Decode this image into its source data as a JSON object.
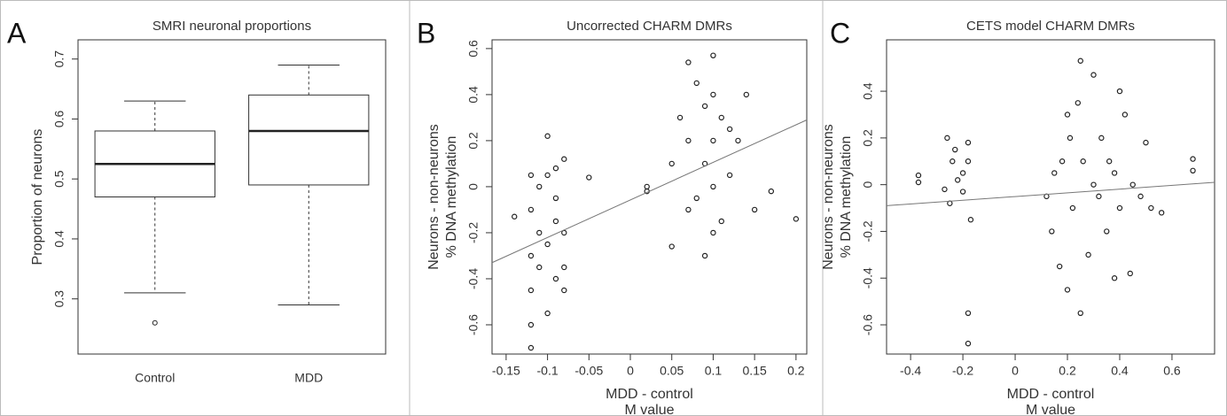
{
  "chart_data": [
    {
      "type": "box",
      "panel_label": "A",
      "title": "SMRI neuronal proportions",
      "ylabel": [
        "Proportion of neurons"
      ],
      "categories": [
        "Control",
        "MDD"
      ],
      "boxes": [
        {
          "min": 0.31,
          "q1": 0.47,
          "median": 0.525,
          "q3": 0.58,
          "max": 0.63,
          "outliers": [
            0.26
          ]
        },
        {
          "min": 0.29,
          "q1": 0.49,
          "median": 0.58,
          "q3": 0.64,
          "max": 0.69
        }
      ],
      "ylim": [
        0.208,
        0.732
      ],
      "yticks": [
        0.3,
        0.4,
        0.5,
        0.6,
        0.7
      ],
      "color": "#222222"
    },
    {
      "type": "scatter",
      "panel_label": "B",
      "title": "Uncorrected CHARM DMRs",
      "ylabel": [
        "Neurons - non-neurons",
        "% DNA methylation"
      ],
      "xlabel": [
        "MDD - control",
        "M value"
      ],
      "x": [
        -0.14,
        -0.12,
        -0.12,
        -0.12,
        -0.12,
        -0.12,
        -0.12,
        -0.11,
        -0.11,
        -0.11,
        -0.1,
        -0.1,
        -0.1,
        -0.1,
        -0.09,
        -0.09,
        -0.09,
        -0.09,
        -0.08,
        -0.08,
        -0.08,
        -0.08,
        -0.05,
        0.02,
        0.02,
        0.05,
        0.05,
        0.06,
        0.07,
        0.07,
        0.07,
        0.08,
        0.08,
        0.09,
        0.09,
        0.09,
        0.1,
        0.1,
        0.1,
        0.1,
        0.1,
        0.11,
        0.11,
        0.12,
        0.12,
        0.13,
        0.14,
        0.15,
        0.17,
        0.2
      ],
      "values": [
        -0.13,
        -0.7,
        -0.6,
        -0.45,
        -0.3,
        -0.1,
        0.05,
        -0.35,
        -0.2,
        0,
        0.22,
        0.05,
        -0.55,
        -0.25,
        0.08,
        -0.15,
        -0.4,
        -0.05,
        -0.2,
        -0.45,
        0.12,
        -0.35,
        0.04,
        -0.02,
        0,
        -0.26,
        0.1,
        0.3,
        0.54,
        0.2,
        -0.1,
        0.45,
        -0.05,
        0.35,
        0.1,
        -0.3,
        0.57,
        0.4,
        0.2,
        0,
        -0.2,
        0.3,
        -0.15,
        0.25,
        0.05,
        0.2,
        0.4,
        -0.1,
        -0.02,
        -0.14
      ],
      "fit_line": {
        "x": [
          -0.167,
          0.213
        ],
        "y": [
          -0.33,
          0.29
        ]
      },
      "xlim": [
        -0.167,
        0.213
      ],
      "xticks": [
        -0.15,
        -0.1,
        -0.05,
        0,
        0.05,
        0.1,
        0.15,
        0.2
      ],
      "ylim": [
        -0.727,
        0.638
      ],
      "yticks": [
        -0.6,
        -0.4,
        -0.2,
        0,
        0.2,
        0.4,
        0.6
      ],
      "color": "#222222"
    },
    {
      "type": "scatter",
      "panel_label": "C",
      "title": "CETS model CHARM DMRs",
      "ylabel": [
        "Neurons - non-neurons",
        "% DNA methylation"
      ],
      "xlabel": [
        "MDD - control",
        "M value"
      ],
      "x": [
        -0.37,
        -0.37,
        -0.27,
        -0.26,
        -0.25,
        -0.24,
        -0.23,
        -0.22,
        -0.2,
        -0.2,
        -0.18,
        -0.18,
        -0.18,
        -0.18,
        -0.17,
        0.12,
        0.14,
        0.15,
        0.17,
        0.18,
        0.2,
        0.2,
        0.21,
        0.22,
        0.24,
        0.25,
        0.25,
        0.26,
        0.28,
        0.3,
        0.3,
        0.32,
        0.33,
        0.35,
        0.36,
        0.38,
        0.38,
        0.4,
        0.4,
        0.42,
        0.44,
        0.45,
        0.48,
        0.5,
        0.52,
        0.56,
        0.68,
        0.68
      ],
      "values": [
        0.04,
        0.01,
        -0.02,
        0.2,
        -0.08,
        0.1,
        0.15,
        0.02,
        0.05,
        -0.03,
        0.18,
        0.1,
        -0.55,
        -0.68,
        -0.15,
        -0.05,
        -0.2,
        0.05,
        -0.35,
        0.1,
        -0.45,
        0.3,
        0.2,
        -0.1,
        0.35,
        0.53,
        -0.55,
        0.1,
        -0.3,
        0.47,
        0,
        -0.05,
        0.2,
        -0.2,
        0.1,
        -0.4,
        0.05,
        0.4,
        -0.1,
        0.3,
        -0.38,
        0,
        -0.05,
        0.18,
        -0.1,
        -0.12,
        0.11,
        0.06
      ],
      "fit_line": {
        "x": [
          -0.492,
          0.763
        ],
        "y": [
          -0.09,
          0.01
        ]
      },
      "xlim": [
        -0.492,
        0.763
      ],
      "xticks": [
        -0.4,
        -0.2,
        0,
        0.2,
        0.4,
        0.6
      ],
      "ylim": [
        -0.725,
        0.62
      ],
      "yticks": [
        -0.6,
        -0.4,
        -0.2,
        0,
        0.2,
        0.4
      ],
      "color": "#222222"
    }
  ]
}
